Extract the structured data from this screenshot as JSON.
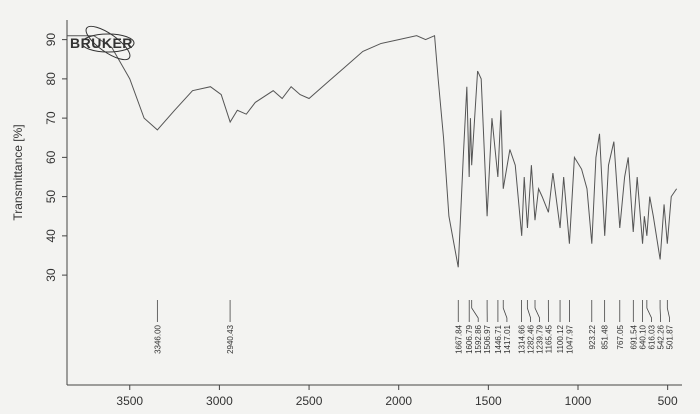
{
  "chart_data": {
    "type": "line",
    "logo": "BRUKER",
    "y_label": "Transmittance [%]",
    "xlim": [
      3850,
      420
    ],
    "ylim": [
      2,
      95
    ],
    "xticks": [
      3500,
      3000,
      2500,
      2000,
      1500,
      1000,
      500
    ],
    "yticks": [
      30,
      40,
      50,
      60,
      70,
      80,
      90
    ],
    "color": "#555555",
    "x": [
      3850,
      3700,
      3600,
      3500,
      3420,
      3346,
      3250,
      3150,
      3050,
      2990,
      2940,
      2900,
      2850,
      2800,
      2700,
      2650,
      2600,
      2550,
      2500,
      2400,
      2300,
      2200,
      2100,
      2000,
      1900,
      1850,
      1800,
      1780,
      1750,
      1720,
      1700,
      1668,
      1640,
      1620,
      1607,
      1600,
      1593,
      1560,
      1540,
      1507,
      1480,
      1447,
      1430,
      1417,
      1380,
      1350,
      1314,
      1300,
      1282,
      1260,
      1240,
      1220,
      1200,
      1165,
      1140,
      1100,
      1080,
      1048,
      1020,
      980,
      950,
      923,
      900,
      880,
      851,
      830,
      800,
      767,
      740,
      720,
      692,
      670,
      640,
      630,
      616,
      600,
      580,
      542,
      520,
      502,
      480,
      450
    ],
    "values": [
      91,
      91,
      88,
      80,
      70,
      67,
      72,
      77,
      78,
      76,
      69,
      72,
      71,
      74,
      77,
      75,
      78,
      76,
      75,
      79,
      83,
      87,
      89,
      90,
      91,
      90,
      91,
      80,
      65,
      45,
      40,
      32,
      60,
      78,
      55,
      70,
      58,
      82,
      80,
      45,
      70,
      55,
      72,
      52,
      62,
      58,
      40,
      55,
      42,
      58,
      44,
      52,
      50,
      46,
      56,
      42,
      55,
      38,
      60,
      57,
      52,
      38,
      60,
      66,
      40,
      58,
      64,
      42,
      55,
      60,
      41,
      55,
      38,
      45,
      40,
      50,
      45,
      34,
      48,
      38,
      50,
      52
    ],
    "peaks": [
      {
        "value": 3346,
        "label": "3346.00"
      },
      {
        "value": 2940.43,
        "label": "2940.43"
      },
      {
        "value": 1667.84,
        "label": "1667.84"
      },
      {
        "value": 1606.79,
        "label": "1606.79"
      },
      {
        "value": 1592.86,
        "label": "1592.86"
      },
      {
        "value": 1506.97,
        "label": "1506.97"
      },
      {
        "value": 1446.71,
        "label": "1446.71"
      },
      {
        "value": 1417.01,
        "label": "1417.01"
      },
      {
        "value": 1314.66,
        "label": "1314.66"
      },
      {
        "value": 1282.46,
        "label": "1282.46"
      },
      {
        "value": 1239.79,
        "label": "1239.79"
      },
      {
        "value": 1165.45,
        "label": "1165.45"
      },
      {
        "value": 1100.12,
        "label": "1100.12"
      },
      {
        "value": 1047.97,
        "label": "1047.97"
      },
      {
        "value": 923.22,
        "label": "923.22"
      },
      {
        "value": 851.48,
        "label": "851.48"
      },
      {
        "value": 767.05,
        "label": "767.05"
      },
      {
        "value": 691.54,
        "label": "691.54"
      },
      {
        "value": 640.1,
        "label": "640.10"
      },
      {
        "value": 616.03,
        "label": "616.03"
      },
      {
        "value": 542.26,
        "label": "542.26"
      },
      {
        "value": 501.87,
        "label": "501.87"
      }
    ]
  }
}
